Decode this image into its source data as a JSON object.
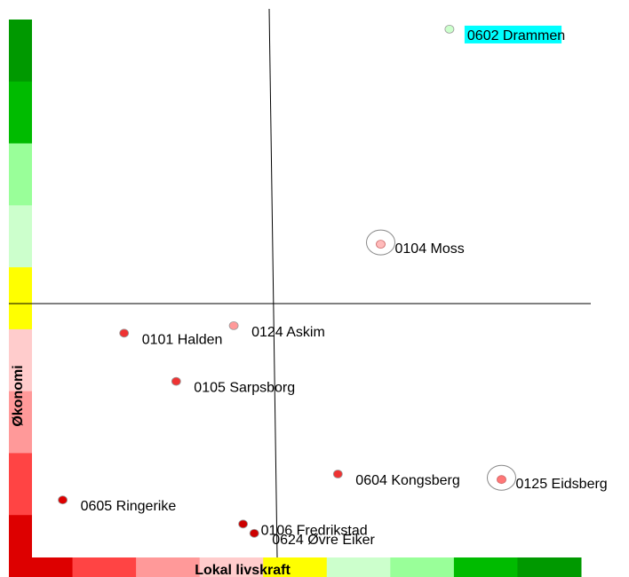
{
  "chart_data": {
    "type": "scatter",
    "xlabel": "Lokal livskraft",
    "ylabel": "Økonomi",
    "xlim": [
      -6.85,
      8.2
    ],
    "ylim": [
      -6.9,
      7.9
    ],
    "grid": false,
    "legend": "none",
    "color_scale": [
      "#dd0000",
      "#ff4444",
      "#ff9999",
      "#ffcccc",
      "#ffff00",
      "#ccffcc",
      "#99ff99",
      "#00bb00",
      "#009900"
    ],
    "points": [
      {
        "label": "0602 Drammen",
        "x": 4.4,
        "y": 7.4,
        "color": "#ccffcc",
        "ring": false,
        "highlight": "#00ffff"
      },
      {
        "label": "0104 Moss",
        "x": 2.55,
        "y": 1.6,
        "color": "#ffbbbb",
        "ring": true,
        "highlight": null
      },
      {
        "label": "0124 Askim",
        "x": -1.4,
        "y": -0.6,
        "color": "#ff9999",
        "ring": false,
        "highlight": null
      },
      {
        "label": "0101 Halden",
        "x": -4.35,
        "y": -0.8,
        "color": "#ee3333",
        "ring": false,
        "highlight": null
      },
      {
        "label": "0105 Sarpsborg",
        "x": -2.95,
        "y": -2.1,
        "color": "#ee3333",
        "ring": false,
        "highlight": null
      },
      {
        "label": "0604 Kongsberg",
        "x": 1.4,
        "y": -4.6,
        "color": "#ee3333",
        "ring": false,
        "highlight": null
      },
      {
        "label": "0125 Eidsberg",
        "x": 5.8,
        "y": -4.75,
        "color": "#ff7777",
        "ring": true,
        "highlight": null
      },
      {
        "label": "0605 Ringerike",
        "x": -6.0,
        "y": -5.3,
        "color": "#dd0000",
        "ring": false,
        "highlight": null
      },
      {
        "label": "0106 Fredrikstad",
        "x": -1.15,
        "y": -5.95,
        "color": "#cc0000",
        "ring": false,
        "highlight": null
      },
      {
        "label": "0624 Øvre Eiker",
        "x": -0.85,
        "y": -6.2,
        "color": "#cc0000",
        "ring": false,
        "highlight": null
      }
    ]
  }
}
